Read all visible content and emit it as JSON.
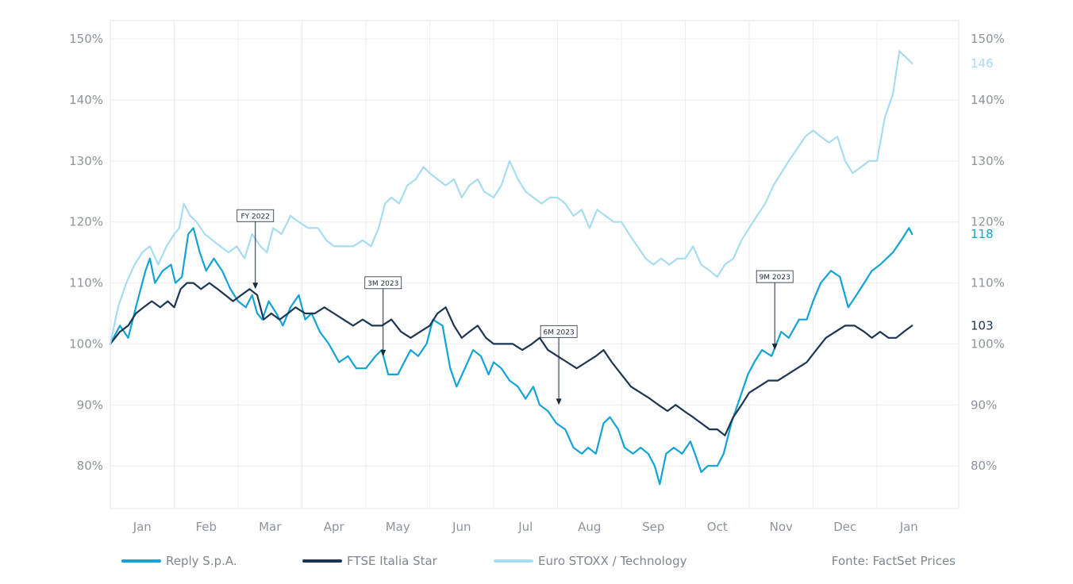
{
  "chart_data": {
    "type": "line",
    "title": "",
    "xlabel": "",
    "ylabel": "",
    "ylim": [
      73,
      153
    ],
    "y_ticks": [
      "80%",
      "90%",
      "100%",
      "110%",
      "120%",
      "130%",
      "140%",
      "150%"
    ],
    "y_tick_values": [
      80,
      90,
      100,
      110,
      120,
      130,
      140,
      150
    ],
    "x_ticks": [
      "Jan",
      "Feb",
      "Mar",
      "Apr",
      "May",
      "Jun",
      "Jul",
      "Aug",
      "Sep",
      "Oct",
      "Nov",
      "Dec",
      "Jan"
    ],
    "x_range": [
      0,
      13
    ],
    "grid": true,
    "legend_position": "bottom-left",
    "source": "Fonte: FactSet Prices",
    "series": [
      {
        "name": "Reply S.p.A.",
        "color": "#12a3d7",
        "end_label": "118",
        "points": [
          [
            0,
            100
          ],
          [
            0.15,
            103
          ],
          [
            0.28,
            101
          ],
          [
            0.4,
            106
          ],
          [
            0.55,
            112
          ],
          [
            0.62,
            114
          ],
          [
            0.7,
            110
          ],
          [
            0.82,
            112
          ],
          [
            0.95,
            113
          ],
          [
            1.02,
            110
          ],
          [
            1.12,
            111
          ],
          [
            1.22,
            118
          ],
          [
            1.3,
            119
          ],
          [
            1.4,
            115
          ],
          [
            1.5,
            112
          ],
          [
            1.62,
            114
          ],
          [
            1.75,
            112
          ],
          [
            1.88,
            109
          ],
          [
            2.0,
            107
          ],
          [
            2.12,
            106
          ],
          [
            2.22,
            108
          ],
          [
            2.3,
            105
          ],
          [
            2.38,
            104
          ],
          [
            2.48,
            107
          ],
          [
            2.6,
            105
          ],
          [
            2.7,
            103
          ],
          [
            2.82,
            106
          ],
          [
            2.95,
            108
          ],
          [
            3.05,
            104
          ],
          [
            3.15,
            105
          ],
          [
            3.28,
            102
          ],
          [
            3.42,
            100
          ],
          [
            3.58,
            97
          ],
          [
            3.72,
            98
          ],
          [
            3.85,
            96
          ],
          [
            4.0,
            96
          ],
          [
            4.15,
            98
          ],
          [
            4.25,
            99
          ],
          [
            4.35,
            95
          ],
          [
            4.5,
            95
          ],
          [
            4.6,
            97
          ],
          [
            4.7,
            99
          ],
          [
            4.82,
            98
          ],
          [
            4.95,
            100
          ],
          [
            5.05,
            104
          ],
          [
            5.2,
            103
          ],
          [
            5.32,
            96
          ],
          [
            5.42,
            93
          ],
          [
            5.55,
            96
          ],
          [
            5.68,
            99
          ],
          [
            5.8,
            98
          ],
          [
            5.92,
            95
          ],
          [
            6.0,
            97
          ],
          [
            6.12,
            96
          ],
          [
            6.25,
            94
          ],
          [
            6.38,
            93
          ],
          [
            6.5,
            91
          ],
          [
            6.62,
            93
          ],
          [
            6.72,
            90
          ],
          [
            6.85,
            89
          ],
          [
            6.98,
            87
          ],
          [
            7.12,
            86
          ],
          [
            7.25,
            83
          ],
          [
            7.38,
            82
          ],
          [
            7.48,
            83
          ],
          [
            7.6,
            82
          ],
          [
            7.72,
            87
          ],
          [
            7.82,
            88
          ],
          [
            7.95,
            86
          ],
          [
            8.05,
            83
          ],
          [
            8.18,
            82
          ],
          [
            8.3,
            83
          ],
          [
            8.42,
            82
          ],
          [
            8.52,
            80
          ],
          [
            8.6,
            77
          ],
          [
            8.7,
            82
          ],
          [
            8.82,
            83
          ],
          [
            8.95,
            82
          ],
          [
            9.08,
            84
          ],
          [
            9.15,
            82
          ],
          [
            9.25,
            79
          ],
          [
            9.35,
            80
          ],
          [
            9.5,
            80
          ],
          [
            9.6,
            82
          ],
          [
            9.72,
            87
          ],
          [
            9.85,
            91
          ],
          [
            9.98,
            95
          ],
          [
            10.08,
            97
          ],
          [
            10.2,
            99
          ],
          [
            10.35,
            98
          ],
          [
            10.5,
            102
          ],
          [
            10.62,
            101
          ],
          [
            10.78,
            104
          ],
          [
            10.9,
            104
          ],
          [
            11.0,
            107
          ],
          [
            11.12,
            110
          ],
          [
            11.28,
            112
          ],
          [
            11.42,
            111
          ],
          [
            11.55,
            106
          ],
          [
            11.68,
            108
          ],
          [
            11.8,
            110
          ],
          [
            11.92,
            112
          ],
          [
            12.05,
            113
          ],
          [
            12.15,
            114
          ],
          [
            12.25,
            115
          ],
          [
            12.38,
            117
          ],
          [
            12.5,
            119
          ],
          [
            12.55,
            118
          ]
        ]
      },
      {
        "name": "FTSE Italia Star",
        "color": "#1c3553",
        "end_label": "103",
        "points": [
          [
            0,
            100
          ],
          [
            0.15,
            102
          ],
          [
            0.28,
            103
          ],
          [
            0.4,
            105
          ],
          [
            0.52,
            106
          ],
          [
            0.65,
            107
          ],
          [
            0.78,
            106
          ],
          [
            0.9,
            107
          ],
          [
            1.0,
            106
          ],
          [
            1.1,
            109
          ],
          [
            1.2,
            110
          ],
          [
            1.3,
            110
          ],
          [
            1.42,
            109
          ],
          [
            1.55,
            110
          ],
          [
            1.68,
            109
          ],
          [
            1.8,
            108
          ],
          [
            1.92,
            107
          ],
          [
            2.05,
            108
          ],
          [
            2.18,
            109
          ],
          [
            2.3,
            108
          ],
          [
            2.4,
            104
          ],
          [
            2.52,
            105
          ],
          [
            2.65,
            104
          ],
          [
            2.78,
            105
          ],
          [
            2.9,
            106
          ],
          [
            3.05,
            105
          ],
          [
            3.2,
            105
          ],
          [
            3.35,
            106
          ],
          [
            3.5,
            105
          ],
          [
            3.65,
            104
          ],
          [
            3.8,
            103
          ],
          [
            3.95,
            104
          ],
          [
            4.1,
            103
          ],
          [
            4.25,
            103
          ],
          [
            4.4,
            104
          ],
          [
            4.55,
            102
          ],
          [
            4.7,
            101
          ],
          [
            4.85,
            102
          ],
          [
            5.0,
            103
          ],
          [
            5.12,
            105
          ],
          [
            5.25,
            106
          ],
          [
            5.38,
            103
          ],
          [
            5.5,
            101
          ],
          [
            5.62,
            102
          ],
          [
            5.75,
            103
          ],
          [
            5.88,
            101
          ],
          [
            6.0,
            100
          ],
          [
            6.15,
            100
          ],
          [
            6.3,
            100
          ],
          [
            6.45,
            99
          ],
          [
            6.6,
            100
          ],
          [
            6.72,
            101
          ],
          [
            6.85,
            99
          ],
          [
            7.0,
            98
          ],
          [
            7.15,
            97
          ],
          [
            7.3,
            96
          ],
          [
            7.45,
            97
          ],
          [
            7.6,
            98
          ],
          [
            7.72,
            99
          ],
          [
            7.85,
            97
          ],
          [
            8.0,
            95
          ],
          [
            8.15,
            93
          ],
          [
            8.3,
            92
          ],
          [
            8.45,
            91
          ],
          [
            8.58,
            90
          ],
          [
            8.72,
            89
          ],
          [
            8.85,
            90
          ],
          [
            8.98,
            89
          ],
          [
            9.12,
            88
          ],
          [
            9.25,
            87
          ],
          [
            9.38,
            86
          ],
          [
            9.5,
            86
          ],
          [
            9.62,
            85
          ],
          [
            9.75,
            88
          ],
          [
            9.88,
            90
          ],
          [
            10.0,
            92
          ],
          [
            10.15,
            93
          ],
          [
            10.3,
            94
          ],
          [
            10.45,
            94
          ],
          [
            10.6,
            95
          ],
          [
            10.75,
            96
          ],
          [
            10.9,
            97
          ],
          [
            11.05,
            99
          ],
          [
            11.2,
            101
          ],
          [
            11.35,
            102
          ],
          [
            11.5,
            103
          ],
          [
            11.65,
            103
          ],
          [
            11.8,
            102
          ],
          [
            11.92,
            101
          ],
          [
            12.05,
            102
          ],
          [
            12.18,
            101
          ],
          [
            12.3,
            101
          ],
          [
            12.42,
            102
          ],
          [
            12.55,
            103
          ]
        ]
      },
      {
        "name": "Euro STOXX / Technology",
        "color": "#a8dcf0",
        "end_label": "146",
        "points": [
          [
            0,
            100
          ],
          [
            0.12,
            106
          ],
          [
            0.25,
            110
          ],
          [
            0.38,
            113
          ],
          [
            0.5,
            115
          ],
          [
            0.62,
            116
          ],
          [
            0.75,
            113
          ],
          [
            0.88,
            116
          ],
          [
            1.0,
            118
          ],
          [
            1.08,
            119
          ],
          [
            1.15,
            123
          ],
          [
            1.25,
            121
          ],
          [
            1.35,
            120
          ],
          [
            1.48,
            118
          ],
          [
            1.6,
            117
          ],
          [
            1.72,
            116
          ],
          [
            1.85,
            115
          ],
          [
            1.98,
            116
          ],
          [
            2.1,
            114
          ],
          [
            2.22,
            118
          ],
          [
            2.35,
            116
          ],
          [
            2.45,
            115
          ],
          [
            2.55,
            119
          ],
          [
            2.68,
            118
          ],
          [
            2.82,
            121
          ],
          [
            2.95,
            120
          ],
          [
            3.1,
            119
          ],
          [
            3.25,
            119
          ],
          [
            3.38,
            117
          ],
          [
            3.5,
            116
          ],
          [
            3.65,
            116
          ],
          [
            3.8,
            116
          ],
          [
            3.95,
            117
          ],
          [
            4.08,
            116
          ],
          [
            4.2,
            119
          ],
          [
            4.3,
            123
          ],
          [
            4.4,
            124
          ],
          [
            4.52,
            123
          ],
          [
            4.65,
            126
          ],
          [
            4.78,
            127
          ],
          [
            4.9,
            129
          ],
          [
            5.0,
            128
          ],
          [
            5.12,
            127
          ],
          [
            5.25,
            126
          ],
          [
            5.38,
            127
          ],
          [
            5.5,
            124
          ],
          [
            5.62,
            126
          ],
          [
            5.75,
            127
          ],
          [
            5.85,
            125
          ],
          [
            6.0,
            124
          ],
          [
            6.12,
            126
          ],
          [
            6.25,
            130
          ],
          [
            6.38,
            127
          ],
          [
            6.5,
            125
          ],
          [
            6.62,
            124
          ],
          [
            6.75,
            123
          ],
          [
            6.88,
            124
          ],
          [
            7.0,
            124
          ],
          [
            7.12,
            123
          ],
          [
            7.25,
            121
          ],
          [
            7.38,
            122
          ],
          [
            7.5,
            119
          ],
          [
            7.62,
            122
          ],
          [
            7.75,
            121
          ],
          [
            7.88,
            120
          ],
          [
            8.0,
            120
          ],
          [
            8.12,
            118
          ],
          [
            8.25,
            116
          ],
          [
            8.38,
            114
          ],
          [
            8.5,
            113
          ],
          [
            8.62,
            114
          ],
          [
            8.75,
            113
          ],
          [
            8.88,
            114
          ],
          [
            9.0,
            114
          ],
          [
            9.12,
            116
          ],
          [
            9.25,
            113
          ],
          [
            9.38,
            112
          ],
          [
            9.5,
            111
          ],
          [
            9.62,
            113
          ],
          [
            9.75,
            114
          ],
          [
            9.88,
            117
          ],
          [
            10.0,
            119
          ],
          [
            10.12,
            121
          ],
          [
            10.25,
            123
          ],
          [
            10.38,
            126
          ],
          [
            10.5,
            128
          ],
          [
            10.62,
            130
          ],
          [
            10.75,
            132
          ],
          [
            10.88,
            134
          ],
          [
            11.0,
            135
          ],
          [
            11.12,
            134
          ],
          [
            11.25,
            133
          ],
          [
            11.38,
            134
          ],
          [
            11.5,
            130
          ],
          [
            11.62,
            128
          ],
          [
            11.75,
            129
          ],
          [
            11.88,
            130
          ],
          [
            12.0,
            130
          ],
          [
            12.12,
            137
          ],
          [
            12.25,
            141
          ],
          [
            12.35,
            148
          ],
          [
            12.45,
            147
          ],
          [
            12.55,
            146
          ]
        ]
      }
    ],
    "annotations": [
      {
        "label": "FY 2022",
        "x": 2.27,
        "y": 109
      },
      {
        "label": "3M 2023",
        "x": 4.27,
        "y": 98
      },
      {
        "label": "6M 2023",
        "x": 7.02,
        "y": 90
      },
      {
        "label": "9M 2023",
        "x": 10.4,
        "y": 99
      }
    ]
  }
}
